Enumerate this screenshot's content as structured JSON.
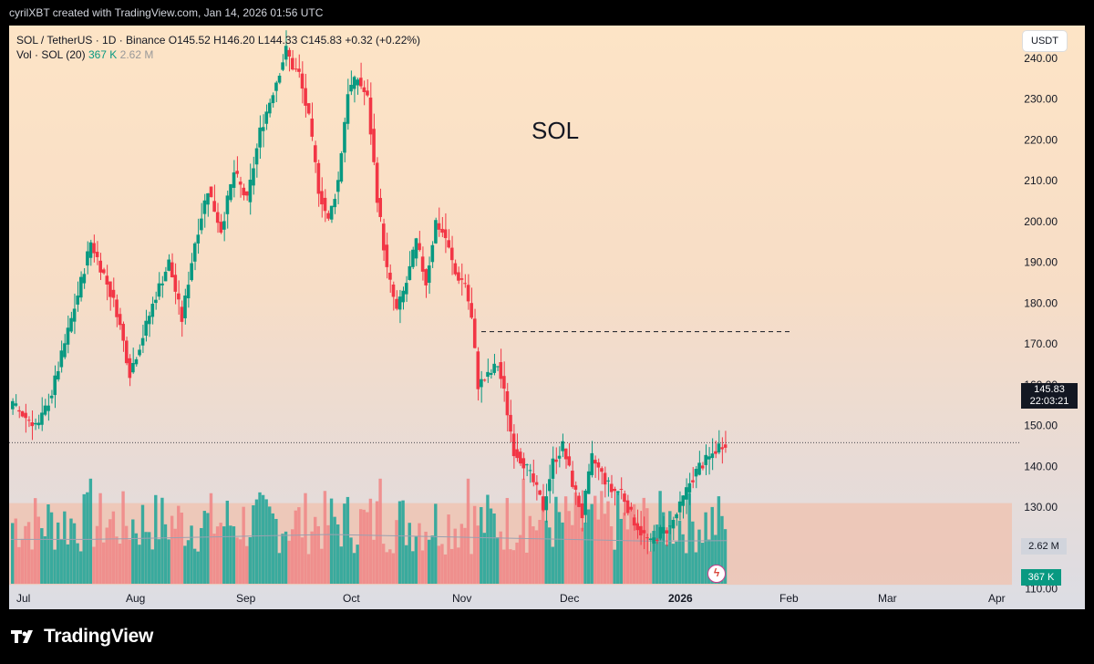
{
  "header": {
    "credit": "cyrilXBT created with TradingView.com, Jan 14, 2026 01:56 UTC"
  },
  "legend": {
    "symbol": "SOL / TetherUS · 1D · Binance",
    "open": "O145.52",
    "high": "H146.20",
    "low": "L144.33",
    "close": "C145.83",
    "change": "+0.32 (+0.22%)",
    "volume_label": "Vol · SOL (20)",
    "volume_value": "367 K",
    "volume_ma": "2.62 M"
  },
  "currency_button": "USDT",
  "annotation": "SOL",
  "price_tags": {
    "last_price": "145.83",
    "countdown": "22:03:21",
    "volume_ma": "2.62 M",
    "volume": "367 K"
  },
  "branding": {
    "name": "TradingView",
    "logo_icon": "tradingview-logo-icon"
  },
  "colors": {
    "up": "#089981",
    "down": "#f23645",
    "vol_up": "#26a69a",
    "vol_down": "#ef8888",
    "zone": "#f0c2ad"
  },
  "chart_data": {
    "type": "candlestick",
    "x_labels": [
      "Jul",
      "Aug",
      "Sep",
      "Oct",
      "Nov",
      "Dec",
      "2026",
      "Feb",
      "Mar",
      "Apr"
    ],
    "y_ticks": [
      "240.00",
      "230.00",
      "220.00",
      "210.00",
      "200.00",
      "190.00",
      "180.00",
      "170.00",
      "160.00",
      "150.00",
      "140.00",
      "130.00",
      "120.00",
      "110.00"
    ],
    "ylim": [
      105,
      248
    ],
    "last_price": 145.83,
    "resistance_level": 173,
    "support_zone": [
      111,
      131
    ],
    "keypoints": [
      [
        0,
        155
      ],
      [
        4,
        152
      ],
      [
        8,
        150
      ],
      [
        12,
        158
      ],
      [
        16,
        170
      ],
      [
        20,
        182
      ],
      [
        24,
        195
      ],
      [
        28,
        187
      ],
      [
        32,
        178
      ],
      [
        36,
        163
      ],
      [
        40,
        172
      ],
      [
        44,
        182
      ],
      [
        48,
        190
      ],
      [
        52,
        176
      ],
      [
        56,
        195
      ],
      [
        60,
        208
      ],
      [
        64,
        198
      ],
      [
        68,
        212
      ],
      [
        72,
        205
      ],
      [
        76,
        222
      ],
      [
        80,
        232
      ],
      [
        84,
        242
      ],
      [
        86,
        238
      ],
      [
        88,
        236
      ],
      [
        91,
        225
      ],
      [
        94,
        208
      ],
      [
        97,
        200
      ],
      [
        100,
        210
      ],
      [
        103,
        232
      ],
      [
        106,
        235
      ],
      [
        109,
        230
      ],
      [
        112,
        206
      ],
      [
        115,
        188
      ],
      [
        118,
        178
      ],
      [
        121,
        185
      ],
      [
        124,
        195
      ],
      [
        127,
        185
      ],
      [
        130,
        200
      ],
      [
        133,
        196
      ],
      [
        136,
        187
      ],
      [
        139,
        185
      ],
      [
        141,
        176
      ],
      [
        143,
        160
      ],
      [
        146,
        162
      ],
      [
        149,
        165
      ],
      [
        151,
        158
      ],
      [
        154,
        144
      ],
      [
        157,
        141
      ],
      [
        160,
        136
      ],
      [
        163,
        130
      ],
      [
        166,
        141
      ],
      [
        169,
        145
      ],
      [
        172,
        136
      ],
      [
        175,
        128
      ],
      [
        178,
        142
      ],
      [
        181,
        138
      ],
      [
        184,
        134
      ],
      [
        187,
        134
      ],
      [
        190,
        128
      ],
      [
        193,
        124
      ],
      [
        196,
        121
      ],
      [
        199,
        124
      ],
      [
        202,
        125
      ],
      [
        205,
        130
      ],
      [
        208,
        136
      ],
      [
        211,
        140
      ],
      [
        214,
        142
      ],
      [
        217,
        145
      ],
      [
        219,
        146
      ]
    ],
    "volume_ma": [
      2.7,
      2.7,
      2.8,
      2.9,
      3.0,
      2.9,
      2.8,
      2.7,
      2.6,
      2.62
    ]
  }
}
